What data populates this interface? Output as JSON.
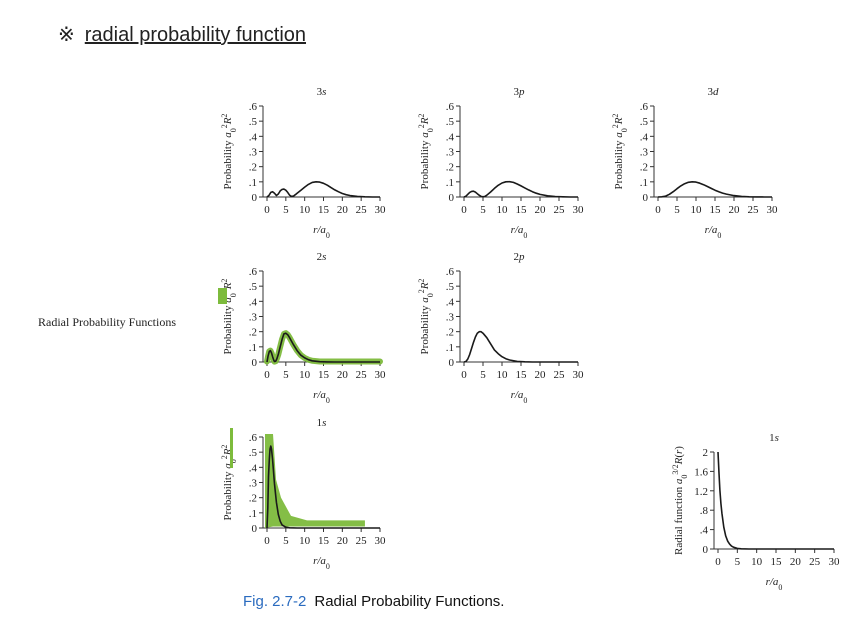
{
  "heading": {
    "mark": "※",
    "text": "radial probability function"
  },
  "side_label": "Radial Probability Functions",
  "caption": {
    "figure": "Fig. 2.7-2",
    "text": "Radial Probability Functions."
  },
  "colors": {
    "curve": "#1a1a1a",
    "highlight": "#7dbb3c",
    "caption_fig": "#2a6bbf"
  },
  "chart_data": [
    {
      "type": "line",
      "title": "3s",
      "xlabel": "r/a0",
      "ylabel": "Probability a0^2R^2",
      "xlim": [
        0,
        30
      ],
      "ylim": [
        0,
        0.6
      ],
      "xticks": [
        "0",
        "5",
        "10",
        "15",
        "20",
        "25",
        "30"
      ],
      "yticks": [
        "0",
        ".1",
        ".2",
        ".3",
        ".4",
        ".5",
        ".6"
      ],
      "series": [
        {
          "x": [
            0,
            0.5,
            1,
            1.5,
            2,
            2.5,
            3,
            3.5,
            4,
            4.5,
            5,
            5.5,
            6,
            6.5,
            7,
            7.5,
            8,
            9,
            10,
            11,
            12,
            13,
            14,
            15,
            16,
            17,
            18,
            19,
            20,
            21,
            22,
            24,
            26,
            28,
            30
          ],
          "values": [
            0,
            0.01,
            0.03,
            0.035,
            0.025,
            0.01,
            0.02,
            0.04,
            0.05,
            0.052,
            0.045,
            0.03,
            0.012,
            0.004,
            0.006,
            0.015,
            0.025,
            0.045,
            0.065,
            0.083,
            0.096,
            0.1,
            0.098,
            0.09,
            0.078,
            0.062,
            0.047,
            0.034,
            0.023,
            0.015,
            0.01,
            0.004,
            0.001,
            0.0003,
            0
          ]
        }
      ]
    },
    {
      "type": "line",
      "title": "3p",
      "xlabel": "r/a0",
      "ylabel": "Probability a0^2R^2",
      "xlim": [
        0,
        30
      ],
      "ylim": [
        0,
        0.6
      ],
      "xticks": [
        "0",
        "5",
        "10",
        "15",
        "20",
        "25",
        "30"
      ],
      "yticks": [
        "0",
        ".1",
        ".2",
        ".3",
        ".4",
        ".5",
        ".6"
      ],
      "series": [
        {
          "x": [
            0,
            0.5,
            1,
            1.5,
            2,
            2.5,
            3,
            3.5,
            4,
            4.5,
            5,
            5.5,
            6,
            7,
            8,
            9,
            10,
            11,
            12,
            13,
            14,
            15,
            16,
            17,
            18,
            19,
            20,
            22,
            24,
            26,
            28,
            30
          ],
          "values": [
            0,
            0.005,
            0.018,
            0.03,
            0.037,
            0.038,
            0.032,
            0.022,
            0.012,
            0.004,
            0.001,
            0.004,
            0.012,
            0.033,
            0.057,
            0.077,
            0.092,
            0.1,
            0.101,
            0.096,
            0.086,
            0.073,
            0.06,
            0.047,
            0.035,
            0.025,
            0.017,
            0.008,
            0.003,
            0.001,
            0.0003,
            0
          ]
        }
      ]
    },
    {
      "type": "line",
      "title": "3d",
      "xlabel": "r/a0",
      "ylabel": "Probability a0^2R^2",
      "xlim": [
        0,
        30
      ],
      "ylim": [
        0,
        0.6
      ],
      "xticks": [
        "0",
        "5",
        "10",
        "15",
        "20",
        "25",
        "30"
      ],
      "yticks": [
        "0",
        ".1",
        ".2",
        ".3",
        ".4",
        ".5",
        ".6"
      ],
      "series": [
        {
          "x": [
            0,
            1,
            2,
            3,
            4,
            5,
            6,
            7,
            8,
            9,
            10,
            11,
            12,
            13,
            14,
            15,
            16,
            17,
            18,
            20,
            22,
            24,
            26,
            28,
            30
          ],
          "values": [
            0,
            0.001,
            0.006,
            0.018,
            0.035,
            0.055,
            0.073,
            0.088,
            0.097,
            0.1,
            0.098,
            0.091,
            0.081,
            0.069,
            0.057,
            0.045,
            0.035,
            0.026,
            0.019,
            0.009,
            0.004,
            0.0015,
            0.0005,
            0.0002,
            0
          ]
        }
      ]
    },
    {
      "type": "line",
      "title": "2s",
      "xlabel": "r/a0",
      "ylabel": "Probability a0^2R^2",
      "xlim": [
        0,
        30
      ],
      "ylim": [
        0,
        0.6
      ],
      "xticks": [
        "0",
        "5",
        "10",
        "15",
        "20",
        "25",
        "30"
      ],
      "yticks": [
        "0",
        ".1",
        ".2",
        ".3",
        ".4",
        ".5",
        ".6"
      ],
      "series": [
        {
          "x": [
            0,
            0.3,
            0.6,
            0.9,
            1.2,
            1.5,
            1.8,
            2,
            2.3,
            2.6,
            3,
            3.5,
            4,
            4.5,
            5,
            5.5,
            6,
            7,
            8,
            9,
            10,
            11,
            12,
            14,
            16,
            18,
            20,
            25,
            30
          ],
          "values": [
            0,
            0.04,
            0.07,
            0.075,
            0.06,
            0.035,
            0.012,
            0.003,
            0.005,
            0.02,
            0.05,
            0.1,
            0.15,
            0.185,
            0.19,
            0.18,
            0.16,
            0.115,
            0.075,
            0.045,
            0.027,
            0.015,
            0.008,
            0.002,
            0.0007,
            0.0002,
            0,
            0,
            0
          ]
        }
      ]
    },
    {
      "type": "line",
      "title": "2p",
      "xlabel": "r/a0",
      "ylabel": "Probability a0^2R^2",
      "xlim": [
        0,
        30
      ],
      "ylim": [
        0,
        0.6
      ],
      "xticks": [
        "0",
        "5",
        "10",
        "15",
        "20",
        "25",
        "30"
      ],
      "yticks": [
        "0",
        ".1",
        ".2",
        ".3",
        ".4",
        ".5",
        ".6"
      ],
      "series": [
        {
          "x": [
            0,
            0.5,
            1,
            1.5,
            2,
            2.5,
            3,
            3.5,
            4,
            4.5,
            5,
            6,
            7,
            8,
            9,
            10,
            11,
            12,
            14,
            16,
            18,
            20,
            25,
            30
          ],
          "values": [
            0,
            0.003,
            0.02,
            0.05,
            0.09,
            0.13,
            0.165,
            0.19,
            0.2,
            0.2,
            0.19,
            0.16,
            0.12,
            0.08,
            0.055,
            0.035,
            0.022,
            0.013,
            0.004,
            0.0012,
            0.0003,
            0,
            0,
            0
          ]
        }
      ]
    },
    {
      "type": "line",
      "title": "1s",
      "xlabel": "r/a0",
      "ylabel": "Probability a0^2R^2",
      "xlim": [
        0,
        30
      ],
      "ylim": [
        0,
        0.6
      ],
      "xticks": [
        "0",
        "5",
        "10",
        "15",
        "20",
        "25",
        "30"
      ],
      "yticks": [
        "0",
        ".1",
        ".2",
        ".3",
        ".4",
        ".5",
        ".6"
      ],
      "series": [
        {
          "x": [
            0,
            0.2,
            0.4,
            0.6,
            0.8,
            1,
            1.2,
            1.5,
            2,
            2.5,
            3,
            3.5,
            4,
            5,
            6,
            8,
            10,
            15,
            20,
            30
          ],
          "values": [
            0,
            0.13,
            0.34,
            0.45,
            0.52,
            0.54,
            0.52,
            0.45,
            0.29,
            0.17,
            0.09,
            0.045,
            0.02,
            0.005,
            0.001,
            0,
            0,
            0,
            0,
            0
          ]
        }
      ]
    },
    {
      "type": "line",
      "title": "1s",
      "xlabel": "r/a0",
      "ylabel": "Radial function a0^(3/2)R(r)",
      "xlim": [
        0,
        30
      ],
      "ylim": [
        0,
        2
      ],
      "xticks": [
        "0",
        "5",
        "10",
        "15",
        "20",
        "25",
        "30"
      ],
      "yticks": [
        "0",
        ".4",
        ".8",
        "1.2",
        "1.6",
        "2"
      ],
      "series": [
        {
          "x": [
            0,
            0.25,
            0.5,
            0.75,
            1,
            1.5,
            2,
            2.5,
            3,
            3.5,
            4,
            5,
            6,
            8,
            10,
            15,
            20,
            25,
            30
          ],
          "values": [
            2,
            1.56,
            1.21,
            0.94,
            0.74,
            0.45,
            0.27,
            0.16,
            0.1,
            0.06,
            0.037,
            0.013,
            0.005,
            0.0007,
            0,
            0,
            0,
            0,
            0
          ]
        }
      ]
    }
  ]
}
